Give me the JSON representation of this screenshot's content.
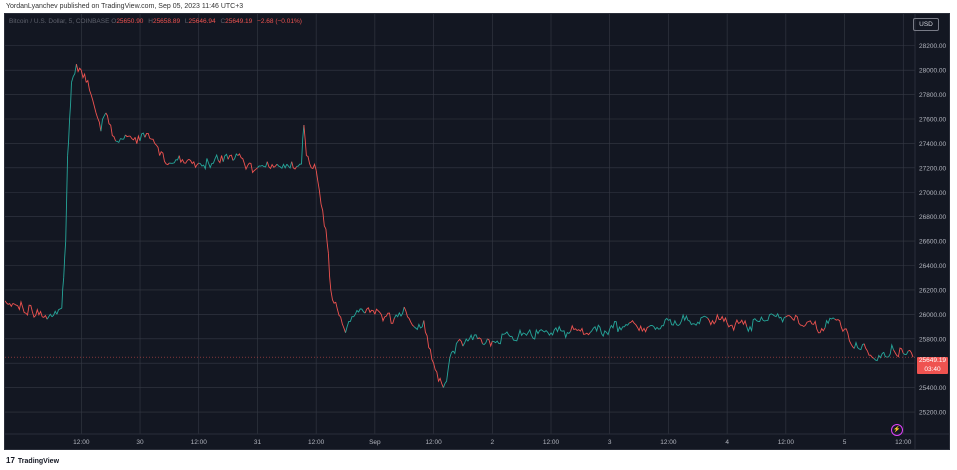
{
  "header": {
    "publisher_line": "YordanLyanchev published on TradingView.com, Sep 05, 2023 11:46 UTC+3"
  },
  "legend": {
    "symbol_text": "Bitcoin / U.S. Dollar, 5, COINBASE",
    "o": "25650.90",
    "h": "25658.89",
    "l": "25646.94",
    "c": "25649.19",
    "change": "−2.68 (−0.01%)"
  },
  "currency_button": "USD",
  "price_tag": {
    "price": "25649.19",
    "countdown": "03:40"
  },
  "footer": {
    "brand": "TradingView",
    "logo_icon": "tradingview-logo-icon"
  },
  "colors": {
    "background": "#131722",
    "grid": "#363a45",
    "up": "#26a69a",
    "down": "#ef5350",
    "axis_text": "#b2b5be"
  },
  "chart_data": {
    "type": "line",
    "title": "Bitcoin / U.S. Dollar, 5, COINBASE",
    "xlabel": "",
    "ylabel": "",
    "ylim": [
      25020,
      28460
    ],
    "y_ticks": [
      25200,
      25400,
      25600,
      25800,
      26000,
      26200,
      26400,
      26600,
      26800,
      27000,
      27200,
      27400,
      27600,
      27800,
      28000,
      28200
    ],
    "y_tick_labels": [
      "25200.00",
      "25400.00",
      "25600.00",
      "25800.00",
      "26000.00",
      "26200.00",
      "26400.00",
      "26600.00",
      "26800.00",
      "27000.00",
      "27200.00",
      "27400.00",
      "27600.00",
      "27800.00",
      "28000.00",
      "28200.00"
    ],
    "x_tick_labels": [
      "12:00",
      "30",
      "12:00",
      "31",
      "12:00",
      "Sep",
      "12:00",
      "2",
      "12:00",
      "3",
      "12:00",
      "4",
      "12:00",
      "5",
      "12:00"
    ],
    "x_tick_hours": [
      12,
      24,
      36,
      48,
      60,
      72,
      84,
      96,
      108,
      120,
      132,
      144,
      156,
      168,
      180
    ],
    "xlim_hours": [
      -3.6,
      182.4
    ],
    "grid": true,
    "series": [
      {
        "x_hours": [
          -3.6,
          -2,
          0,
          2,
          4,
          5,
          6,
          7,
          8,
          8.4,
          8.8,
          9.2,
          9.6,
          10,
          11,
          12,
          13,
          14,
          15,
          16,
          17,
          18,
          19,
          20,
          21,
          22,
          23,
          24,
          25,
          26,
          27,
          28,
          30,
          32,
          34,
          36,
          38,
          40,
          41,
          42,
          43,
          44,
          46,
          48,
          50,
          52,
          54,
          55,
          56,
          57,
          57.5,
          58,
          59,
          60,
          61,
          62,
          62.5,
          63,
          64,
          65,
          66,
          68,
          70,
          72,
          74,
          76,
          78,
          80,
          82,
          84,
          86,
          88,
          89,
          90,
          91,
          92,
          93,
          94,
          95,
          96,
          100,
          104,
          108,
          112,
          116,
          120,
          124,
          128,
          132,
          136,
          140,
          144,
          148,
          152,
          156,
          160,
          164,
          166,
          168,
          170,
          172,
          174,
          176,
          178,
          180,
          181,
          182
        ],
        "y": [
          26110,
          26090,
          26060,
          26020,
          25980,
          25960,
          25980,
          26000,
          26050,
          26300,
          26600,
          27300,
          27600,
          27900,
          28050,
          28000,
          27900,
          27800,
          27650,
          27500,
          27650,
          27550,
          27420,
          27440,
          27470,
          27460,
          27450,
          27420,
          27450,
          27440,
          27400,
          27300,
          27240,
          27300,
          27270,
          27240,
          27240,
          27260,
          27250,
          27270,
          27260,
          27300,
          27220,
          27200,
          27250,
          27230,
          27230,
          27250,
          27210,
          27230,
          27550,
          27300,
          27200,
          27180,
          26900,
          26700,
          26500,
          26200,
          26100,
          25980,
          25850,
          26000,
          26010,
          26000,
          25980,
          25970,
          26060,
          25900,
          25950,
          25600,
          25400,
          25700,
          25780,
          25740,
          25780,
          25790,
          25800,
          25760,
          25800,
          25780,
          25820,
          25830,
          25850,
          25860,
          25850,
          25880,
          25930,
          25900,
          25950,
          25950,
          25970,
          25930,
          25900,
          25950,
          25980,
          25910,
          25890,
          25960,
          25880,
          25720,
          25760,
          25640,
          25690,
          25710,
          25680,
          25700,
          25649.19
        ]
      }
    ]
  }
}
